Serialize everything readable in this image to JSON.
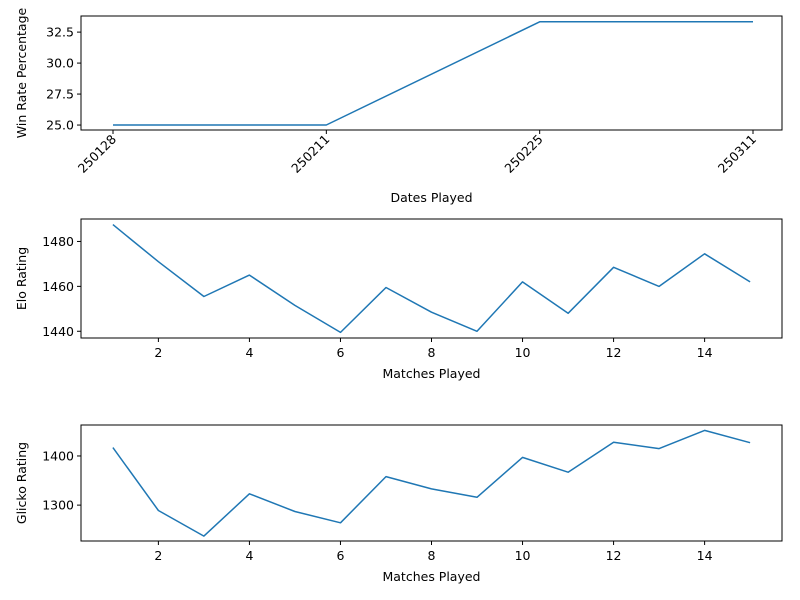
{
  "chart_data": [
    {
      "type": "line",
      "xlabel": "Dates Played",
      "ylabel": "Win Rate Percentage",
      "categories": [
        "250128",
        "250211",
        "250225",
        "250311"
      ],
      "ylim": [
        24.6,
        33.8
      ],
      "yticks": [
        25.0,
        27.5,
        30.0,
        32.5
      ],
      "ytick_labels": [
        "25.0",
        "27.5",
        "30.0",
        "32.5"
      ],
      "xtick_rotation": 45,
      "grid": false,
      "color": "#1f77b4",
      "series": [
        {
          "values": [
            25.0,
            25.0,
            33.33,
            33.33
          ]
        }
      ]
    },
    {
      "type": "line",
      "xlabel": "Matches Played",
      "ylabel": "Elo Rating",
      "xlim": [
        0.3,
        15.7
      ],
      "xticks": [
        2,
        4,
        6,
        8,
        10,
        12,
        14
      ],
      "ylim": [
        1437,
        1490
      ],
      "yticks": [
        1440,
        1460,
        1480
      ],
      "grid": false,
      "color": "#1f77b4",
      "series": [
        {
          "x": [
            1,
            2,
            3,
            4,
            5,
            6,
            7,
            8,
            9,
            10,
            11,
            12,
            13,
            14,
            15
          ],
          "values": [
            1487.5,
            1471,
            1455.5,
            1465,
            1451.5,
            1439.5,
            1459.5,
            1448.5,
            1440,
            1462,
            1448,
            1468.5,
            1460,
            1474.5,
            1462
          ]
        }
      ]
    },
    {
      "type": "line",
      "xlabel": "Matches Played",
      "ylabel": "Glicko Rating",
      "xlim": [
        0.3,
        15.7
      ],
      "xticks": [
        2,
        4,
        6,
        8,
        10,
        12,
        14
      ],
      "ylim": [
        1227,
        1463
      ],
      "yticks": [
        1300,
        1400
      ],
      "grid": false,
      "color": "#1f77b4",
      "series": [
        {
          "x": [
            1,
            2,
            3,
            4,
            5,
            6,
            7,
            8,
            9,
            10,
            11,
            12,
            13,
            14,
            15
          ],
          "values": [
            1417,
            1289,
            1237,
            1323,
            1287,
            1264,
            1358,
            1333,
            1316,
            1397,
            1367,
            1428,
            1415,
            1452,
            1427
          ]
        }
      ]
    }
  ]
}
